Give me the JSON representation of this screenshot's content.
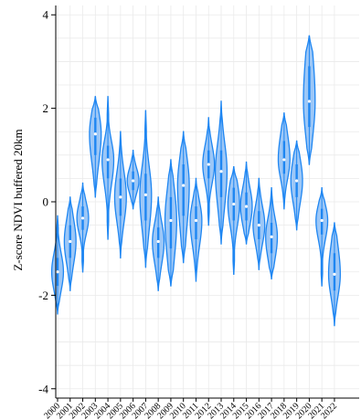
{
  "chart_data": {
    "type": "violin",
    "title": "",
    "xlabel": "",
    "ylabel": "Z-score NDVI buffered 20km",
    "ylim": [
      -4.2,
      4.2
    ],
    "yticks": [
      -4,
      -2,
      0,
      2,
      4
    ],
    "grid": true,
    "colors": {
      "fill": "#9cc7f7",
      "edge": "#1e86f2",
      "center": "#ffffff",
      "grid": "#eaeaea",
      "axis": "#000000"
    },
    "categories": [
      "2000",
      "2001",
      "2002",
      "2003",
      "2004",
      "2005",
      "2006",
      "2007",
      "2008",
      "2009",
      "2010",
      "2011",
      "2012",
      "2013",
      "2014",
      "2015",
      "2016",
      "2017",
      "2018",
      "2019",
      "2020",
      "2021",
      "2022"
    ],
    "series": [
      {
        "min": -2.4,
        "max": -0.3,
        "median": -1.5,
        "q1": -1.8,
        "q3": -1.2
      },
      {
        "min": -1.9,
        "max": 0.1,
        "median": -0.85,
        "q1": -1.2,
        "q3": -0.5
      },
      {
        "min": -1.5,
        "max": 0.4,
        "median": -0.35,
        "q1": -0.6,
        "q3": -0.1
      },
      {
        "min": 0.1,
        "max": 2.25,
        "median": 1.45,
        "q1": 1.0,
        "q3": 1.8
      },
      {
        "min": -0.8,
        "max": 2.25,
        "median": 0.9,
        "q1": 0.5,
        "q3": 1.2
      },
      {
        "min": -1.2,
        "max": 1.5,
        "median": 0.1,
        "q1": -0.3,
        "q3": 0.5
      },
      {
        "min": -0.15,
        "max": 1.1,
        "median": 0.45,
        "q1": 0.25,
        "q3": 0.65
      },
      {
        "min": -1.4,
        "max": 1.95,
        "median": 0.15,
        "q1": -0.4,
        "q3": 0.6
      },
      {
        "min": -1.9,
        "max": 0.1,
        "median": -0.85,
        "q1": -1.2,
        "q3": -0.55
      },
      {
        "min": -1.8,
        "max": 0.9,
        "median": -0.4,
        "q1": -1.0,
        "q3": 0.1
      },
      {
        "min": -1.3,
        "max": 1.5,
        "median": 0.35,
        "q1": -0.3,
        "q3": 0.8
      },
      {
        "min": -1.7,
        "max": 0.5,
        "median": -0.4,
        "q1": -0.8,
        "q3": -0.1
      },
      {
        "min": -0.5,
        "max": 1.8,
        "median": 0.8,
        "q1": 0.5,
        "q3": 1.1
      },
      {
        "min": -0.9,
        "max": 2.15,
        "median": 0.65,
        "q1": 0.1,
        "q3": 1.1
      },
      {
        "min": -1.55,
        "max": 0.75,
        "median": -0.05,
        "q1": -0.4,
        "q3": 0.3
      },
      {
        "min": -0.9,
        "max": 0.85,
        "median": -0.1,
        "q1": -0.4,
        "q3": 0.2
      },
      {
        "min": -1.45,
        "max": 0.5,
        "median": -0.5,
        "q1": -0.8,
        "q3": -0.2
      },
      {
        "min": -1.65,
        "max": 0.3,
        "median": -0.75,
        "q1": -1.1,
        "q3": -0.45
      },
      {
        "min": -0.15,
        "max": 1.9,
        "median": 0.9,
        "q1": 0.6,
        "q3": 1.3
      },
      {
        "min": -0.6,
        "max": 1.3,
        "median": 0.45,
        "q1": 0.1,
        "q3": 0.8
      },
      {
        "min": 0.8,
        "max": 3.55,
        "median": 2.15,
        "q1": 1.6,
        "q3": 2.9
      },
      {
        "min": -1.8,
        "max": 0.3,
        "median": -0.4,
        "q1": -0.7,
        "q3": -0.15
      },
      {
        "min": -2.65,
        "max": -0.45,
        "median": -1.55,
        "q1": -1.9,
        "q3": -1.1
      }
    ]
  }
}
